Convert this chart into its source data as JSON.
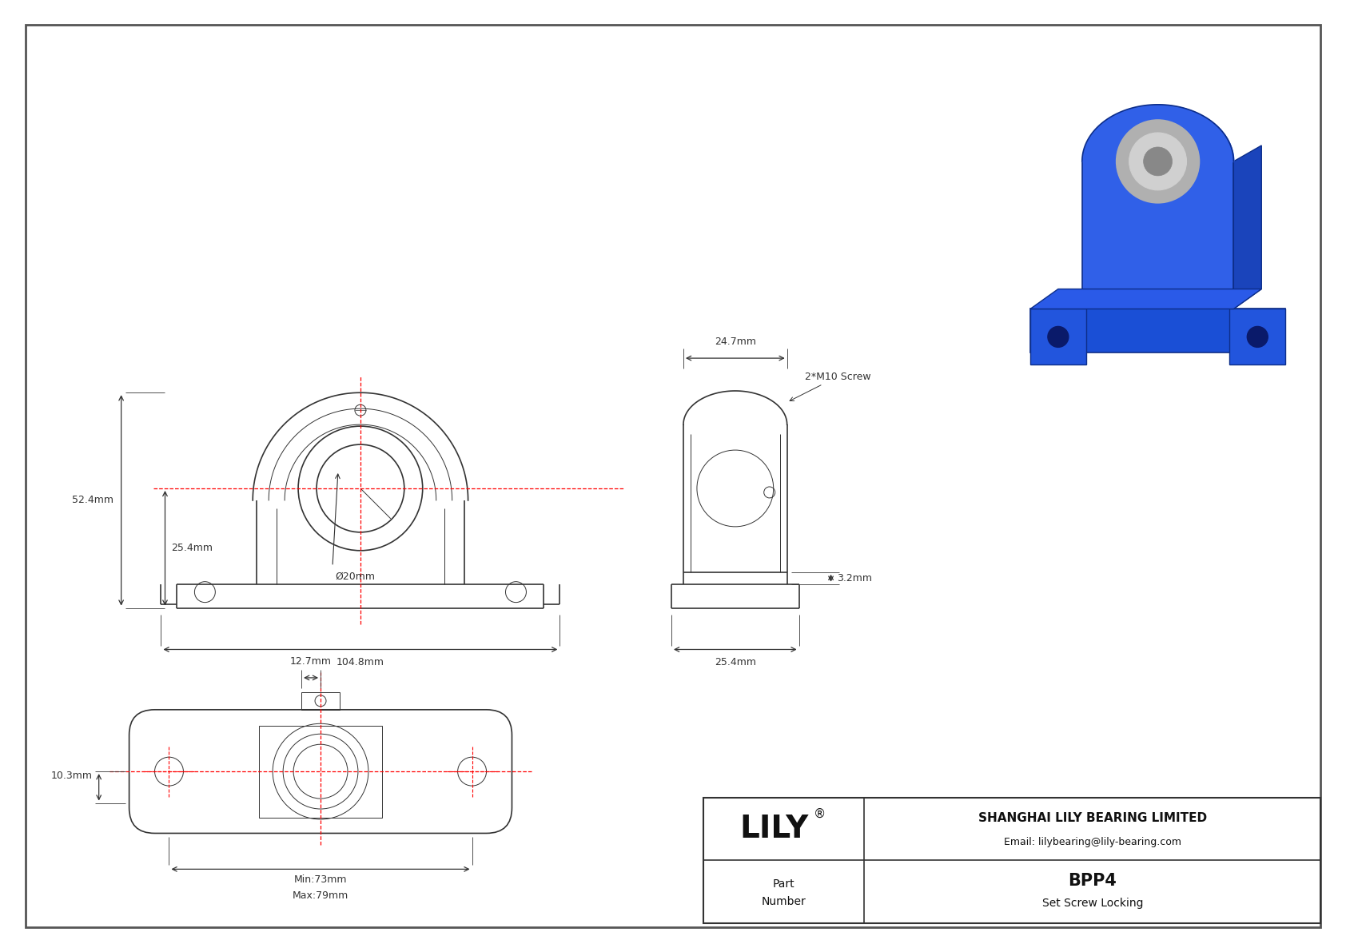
{
  "bg_color": "#ffffff",
  "border_color": "#555555",
  "line_color": "#333333",
  "red_line_color": "#ff0000",
  "dim_color": "#333333",
  "title_company": "SHANGHAI LILY BEARING LIMITED",
  "title_email": "Email: lilybearing@lily-bearing.com",
  "part_number": "BPP4",
  "part_type": "Set Screw Locking",
  "logo_text": "LILY",
  "logo_reg": "®",
  "dim_52_4": "52.4mm",
  "dim_25_4_left": "25.4mm",
  "dim_104_8": "104.8mm",
  "dim_20": "Ø20mm",
  "dim_3_2": "3.2mm",
  "dim_24_7": "24.7mm",
  "dim_25_4_right": "25.4mm",
  "dim_2m10": "2*M10 Screw",
  "dim_12_7": "12.7mm",
  "dim_10_3": "10.3mm",
  "dim_min73": "Min:73mm",
  "dim_max79": "Max:79mm"
}
